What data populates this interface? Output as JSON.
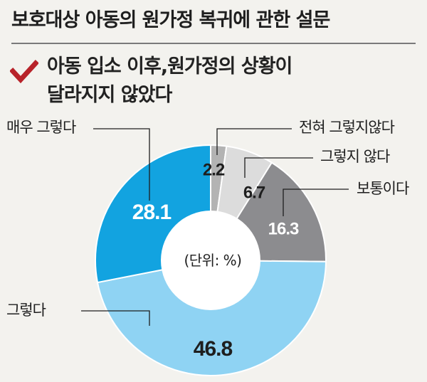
{
  "header": {
    "title": "보호대상 아동의 원가정 복귀에 관한 설문",
    "question_lines": [
      "아동 입소 이후,원가정의 상황이",
      "달라지지 않았다"
    ]
  },
  "chart_unit": "(단위: %)",
  "colors": {
    "check": "#b8232a",
    "strongly_agree": "#12a3e0",
    "agree": "#8fd3f3",
    "neutral": "#8c8c8f",
    "disagree": "#dcdcdc",
    "strongly_disagree": "#b3b3b3"
  },
  "chart_data": {
    "type": "pie",
    "categories": [
      "전혀 그렇지않다",
      "그렇지 않다",
      "보통이다",
      "그렇다",
      "매우 그렇다"
    ],
    "values": [
      2.2,
      6.7,
      16.3,
      46.8,
      28.1
    ],
    "value_labels": [
      "2.2",
      "6.7",
      "16.3",
      "46.8",
      "28.1"
    ],
    "unit": "%",
    "style": "donut",
    "start_angle": "12 o'clock",
    "direction": "clockwise",
    "labels_placement": "leader lines"
  }
}
